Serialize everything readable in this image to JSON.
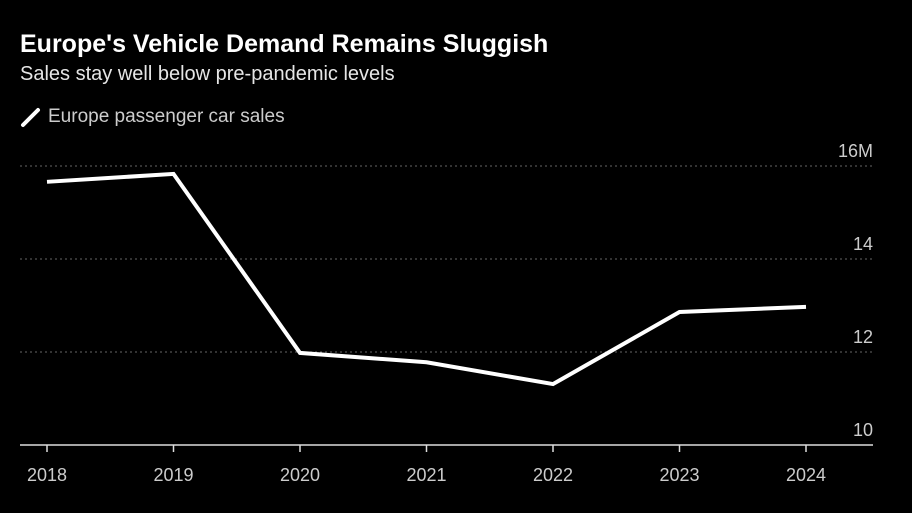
{
  "chart_data": {
    "type": "line",
    "title": "Europe's Vehicle Demand Remains Sluggish",
    "subtitle": "Sales stay well below pre-pandemic levels",
    "xlabel": "",
    "ylabel": "",
    "categories": [
      "2018",
      "2019",
      "2020",
      "2021",
      "2022",
      "2023",
      "2024"
    ],
    "series": [
      {
        "name": "Europe passenger car sales",
        "values": [
          15.66,
          15.83,
          11.98,
          11.78,
          11.31,
          12.86,
          12.97
        ],
        "color": "#ffffff"
      }
    ],
    "ylim": [
      10,
      16
    ],
    "yticks": [
      10,
      12,
      14,
      16
    ],
    "ytick_labels": [
      "10",
      "12",
      "14",
      "16M"
    ],
    "grid": true,
    "legend_placement": "top-left"
  }
}
